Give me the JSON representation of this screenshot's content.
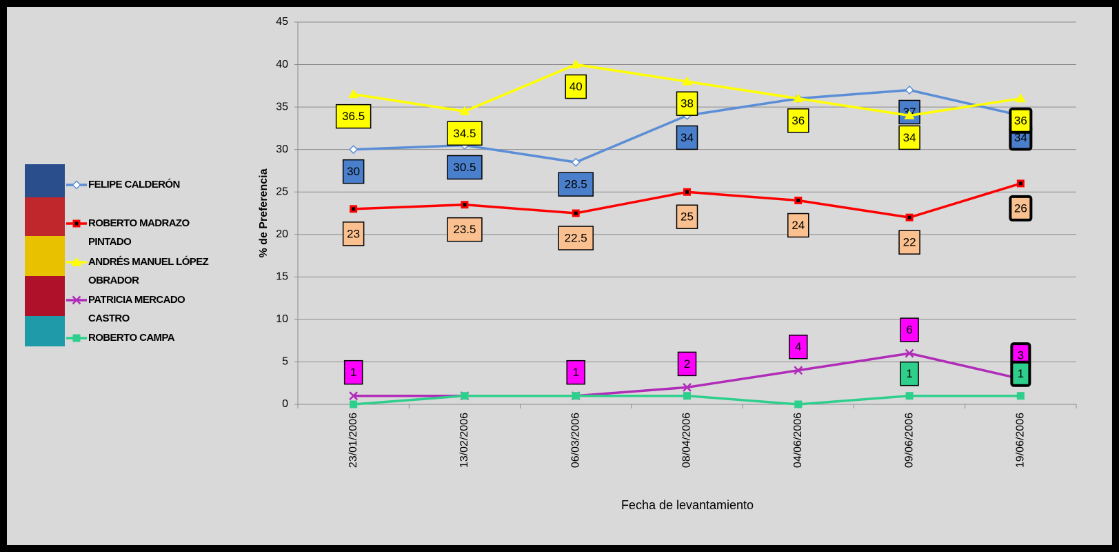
{
  "chart_data": {
    "type": "line",
    "x_label": "Fecha de levantamiento",
    "y_label": "% de Preferencia",
    "categories": [
      "23/01/2006",
      "13/02/2006",
      "06/03/2006",
      "08/04/2006",
      "04/06/2006",
      "09/06/2006",
      "19/06/2006"
    ],
    "ylim": [
      0,
      45
    ],
    "yticks": [
      0,
      5,
      10,
      15,
      20,
      25,
      30,
      35,
      40,
      45
    ],
    "grid": true,
    "legend": "left",
    "series": [
      {
        "name": "FELIPE CALDERÓN",
        "color": "#5b8ed6",
        "label_color": "#4a7fcc",
        "marker": "diamond",
        "values": [
          30,
          30.5,
          28.5,
          34,
          36,
          37,
          34
        ],
        "value_labels": [
          "30",
          "30.5",
          "28.5",
          "34",
          null,
          "37",
          "34"
        ]
      },
      {
        "name": "ROBERTO MADRAZO PINTADO",
        "color": "#ff0000",
        "label_color": "#fac090",
        "marker": "square",
        "values": [
          23,
          23.5,
          22.5,
          25,
          24,
          22,
          26
        ],
        "value_labels": [
          "23",
          "23.5",
          "22.5",
          "25",
          "24",
          "22",
          "26"
        ]
      },
      {
        "name": "ANDRÉS MANUEL LÓPEZ OBRADOR",
        "color": "#ffff00",
        "label_color": "#ffff00",
        "marker": "triangle",
        "values": [
          36.5,
          34.5,
          40,
          38,
          36,
          34,
          36
        ],
        "value_labels": [
          "36.5",
          "34.5",
          "40",
          "38",
          "36",
          "34",
          "36"
        ]
      },
      {
        "name": "PATRICIA MERCADO CASTRO",
        "color": "#b02cb8",
        "label_color": "#ff00ff",
        "marker": "x",
        "values": [
          1,
          1,
          1,
          2,
          4,
          6,
          3
        ],
        "value_labels": [
          "1",
          null,
          "1",
          "2",
          "4",
          "6",
          "3"
        ]
      },
      {
        "name": "ROBERTO CAMPA",
        "color": "#2ecf8c",
        "label_color": "#2ecf8c",
        "marker": "square",
        "values": [
          0,
          1,
          1,
          1,
          0,
          1,
          1
        ],
        "value_labels": [
          null,
          null,
          null,
          null,
          null,
          "1",
          "1"
        ]
      }
    ]
  }
}
